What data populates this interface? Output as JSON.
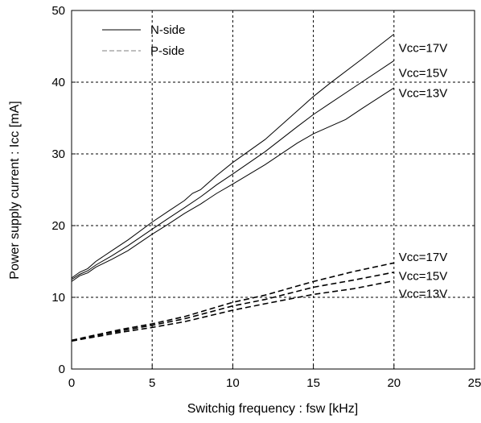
{
  "chart_data": {
    "type": "line",
    "title": "",
    "xlabel": "Switchig frequency : fsw [kHz]",
    "ylabel": "Power supply current : Icc [mA]",
    "xlim": [
      0,
      25
    ],
    "ylim": [
      0,
      50
    ],
    "xticks": [
      "0",
      "5",
      "10",
      "15",
      "20",
      "25"
    ],
    "yticks": [
      "0",
      "10",
      "20",
      "30",
      "40",
      "50"
    ],
    "grid": true,
    "legend_position": "top-left",
    "legend": [
      {
        "name": "N-side",
        "style": "solid"
      },
      {
        "name": "P-side",
        "style": "dashed"
      }
    ],
    "series": [
      {
        "name": "N-side Vcc=17V",
        "side": "N-side",
        "label": "Vcc=17V",
        "style": "solid",
        "x": [
          0,
          0.5,
          1,
          1.5,
          2.5,
          3.5,
          5,
          6,
          7,
          7.5,
          8,
          9,
          10,
          12,
          14,
          15,
          16,
          18,
          20
        ],
        "y": [
          12.7,
          13.5,
          14,
          15,
          16.5,
          18,
          20.5,
          22,
          23.5,
          24.5,
          25,
          27,
          28.8,
          32,
          36,
          38,
          39.8,
          43.2,
          46.7
        ]
      },
      {
        "name": "N-side Vcc=15V",
        "side": "N-side",
        "label": "Vcc=15V",
        "style": "solid",
        "x": [
          0,
          0.5,
          1,
          1.5,
          2.5,
          3.5,
          5,
          6,
          7,
          8,
          9,
          10,
          12,
          14,
          15,
          16,
          18,
          20
        ],
        "y": [
          12.5,
          13.2,
          13.7,
          14.5,
          15.8,
          17.2,
          19.5,
          21,
          22.5,
          24,
          25.7,
          27.2,
          30.3,
          33.8,
          35.5,
          37,
          40,
          43
        ]
      },
      {
        "name": "N-side Vcc=13V",
        "side": "N-side",
        "label": "Vcc=13V",
        "style": "solid",
        "x": [
          0,
          0.5,
          1,
          1.5,
          2.5,
          3.5,
          5,
          6,
          7,
          8,
          9,
          10,
          12,
          14,
          15,
          16,
          17,
          18,
          20
        ],
        "y": [
          12.2,
          13,
          13.4,
          14.2,
          15.3,
          16.5,
          18.8,
          20.2,
          21.7,
          23,
          24.5,
          25.8,
          28.5,
          31.5,
          32.8,
          33.8,
          34.8,
          36.3,
          39.2
        ]
      },
      {
        "name": "P-side Vcc=17V",
        "side": "P-side",
        "label": "Vcc=17V",
        "style": "dashed",
        "x": [
          0,
          1,
          2,
          3,
          5,
          7,
          10,
          12,
          15,
          17.5,
          20
        ],
        "y": [
          4,
          4.5,
          5,
          5.5,
          6.3,
          7.3,
          9.3,
          10.3,
          12.2,
          13.6,
          14.8
        ]
      },
      {
        "name": "P-side Vcc=15V",
        "side": "P-side",
        "label": "Vcc=15V",
        "style": "dashed",
        "x": [
          0,
          1,
          2,
          3,
          5,
          7,
          10,
          12,
          15,
          17.5,
          20
        ],
        "y": [
          4,
          4.4,
          4.9,
          5.3,
          6.1,
          7,
          8.8,
          9.7,
          11.4,
          12.4,
          13.5
        ]
      },
      {
        "name": "P-side Vcc=13V",
        "side": "P-side",
        "label": "Vcc=13V",
        "style": "dashed",
        "x": [
          0,
          1,
          2,
          3,
          5,
          7,
          10,
          12,
          15,
          17.5,
          20
        ],
        "y": [
          3.9,
          4.3,
          4.7,
          5.1,
          5.8,
          6.6,
          8.2,
          9.1,
          10.4,
          11.2,
          12.3
        ]
      }
    ],
    "annotations": [
      {
        "text": "Vcc=17V",
        "x": 20.3,
        "y": 44.8
      },
      {
        "text": "Vcc=15V",
        "x": 20.3,
        "y": 41.3
      },
      {
        "text": "Vcc=13V",
        "x": 20.3,
        "y": 38.5
      },
      {
        "text": "Vcc=17V",
        "x": 20.3,
        "y": 15.6
      },
      {
        "text": "Vcc=15V",
        "x": 20.3,
        "y": 13.0
      },
      {
        "text": "Vcc=13V",
        "x": 20.3,
        "y": 10.5
      }
    ]
  }
}
